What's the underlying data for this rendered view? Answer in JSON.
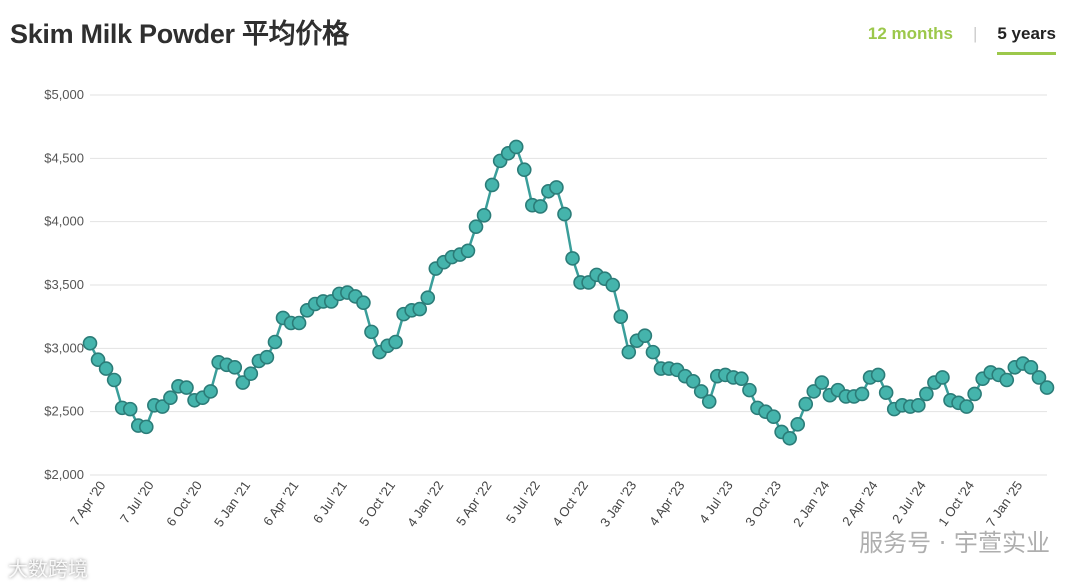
{
  "header": {
    "title": "Skim Milk Powder 平均价格",
    "tabs": [
      {
        "label": "12 months",
        "active": false
      },
      {
        "label": "5 years",
        "active": true
      }
    ]
  },
  "watermarks": {
    "left": "大数跨境",
    "right": "服务号 · 宇萱实业"
  },
  "colors": {
    "line": "#3a9e9a",
    "marker_fill": "#45b4ac",
    "marker_stroke": "#2b7c78",
    "grid": "#e2e2e2",
    "accent": "#9cc84b"
  },
  "chart_data": {
    "type": "line",
    "title": "Skim Milk Powder 平均价格",
    "xlabel": "",
    "ylabel": "",
    "ylim": [
      2000,
      5000
    ],
    "grid": true,
    "y_ticks": [
      2000,
      2500,
      3000,
      3500,
      4000,
      4500,
      5000
    ],
    "y_tick_labels": [
      "$2,000",
      "$2,500",
      "$3,000",
      "$3,500",
      "$4,000",
      "$4,500",
      "$5,000"
    ],
    "x_tick_labels": [
      {
        "label": "7 Apr '20",
        "index": 2
      },
      {
        "label": "7 Jul '20",
        "index": 8
      },
      {
        "label": "6 Oct '20",
        "index": 14
      },
      {
        "label": "5 Jan '21",
        "index": 20
      },
      {
        "label": "6 Apr '21",
        "index": 26
      },
      {
        "label": "6 Jul '21",
        "index": 32
      },
      {
        "label": "5 Oct '21",
        "index": 38
      },
      {
        "label": "4 Jan '22",
        "index": 44
      },
      {
        "label": "5 Apr '22",
        "index": 50
      },
      {
        "label": "5 Jul '22",
        "index": 56
      },
      {
        "label": "4 Oct '22",
        "index": 62
      },
      {
        "label": "3 Jan '23",
        "index": 68
      },
      {
        "label": "4 Apr '23",
        "index": 74
      },
      {
        "label": "4 Jul '23",
        "index": 80
      },
      {
        "label": "3 Oct '23",
        "index": 86
      },
      {
        "label": "2 Jan '24",
        "index": 92
      },
      {
        "label": "2 Apr '24",
        "index": 98
      },
      {
        "label": "2 Jul '24",
        "index": 104
      },
      {
        "label": "1 Oct '24",
        "index": 110
      },
      {
        "label": "7 Jan '25",
        "index": 116
      }
    ],
    "series": [
      {
        "values": [
          3040,
          2910,
          2840,
          2750,
          2530,
          2520,
          2390,
          2380,
          2550,
          2540,
          2610,
          2700,
          2690,
          2590,
          2610,
          2660,
          2890,
          2870,
          2850,
          2730,
          2800,
          2900,
          2930,
          3050,
          3240,
          3200,
          3200,
          3300,
          3350,
          3370,
          3370,
          3430,
          3440,
          3410,
          3360,
          3130,
          2970,
          3020,
          3050,
          3270,
          3300,
          3310,
          3400,
          3630,
          3680,
          3720,
          3740,
          3770,
          3960,
          4050,
          4290,
          4480,
          4540,
          4590,
          4410,
          4130,
          4120,
          4240,
          4270,
          4060,
          3710,
          3520,
          3520,
          3580,
          3550,
          3500,
          3250,
          2970,
          3060,
          3100,
          2970,
          2840,
          2840,
          2830,
          2780,
          2740,
          2660,
          2580,
          2780,
          2790,
          2770,
          2760,
          2670,
          2530,
          2500,
          2460,
          2340,
          2290,
          2400,
          2560,
          2660,
          2730,
          2630,
          2670,
          2620,
          2620,
          2640,
          2770,
          2790,
          2650,
          2520,
          2550,
          2540,
          2550,
          2640,
          2730,
          2770,
          2590,
          2570,
          2540,
          2640,
          2760,
          2810,
          2790,
          2750,
          2850,
          2880,
          2850,
          2770,
          2690
        ]
      }
    ]
  }
}
